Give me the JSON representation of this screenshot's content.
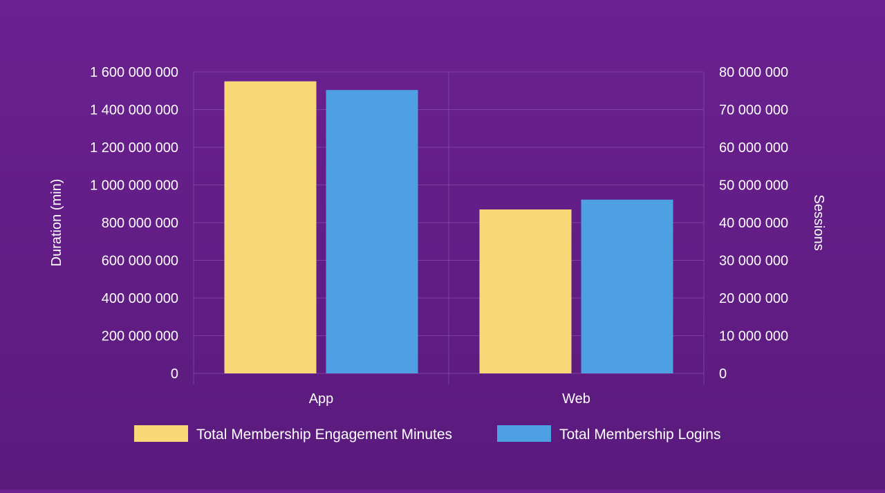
{
  "colors": {
    "background_top": "#6b2190",
    "background_bottom": "#5a1a7c",
    "grid": "#8a4fb0",
    "engagement_bar": "#f9d977",
    "logins_bar": "#4f9fe3",
    "text": "#ffffff"
  },
  "chart_data": {
    "type": "bar",
    "categories": [
      "App",
      "Web"
    ],
    "series": [
      {
        "name": "Total Membership Engagement Minutes",
        "axis": "left",
        "color": "#f9d977",
        "values": [
          1550000000,
          870000000
        ]
      },
      {
        "name": "Total Membership Logins",
        "axis": "right",
        "color": "#4f9fe3",
        "values": [
          75200000,
          46100000
        ]
      }
    ],
    "y_left": {
      "label": "Duration (min)",
      "range": [
        0,
        1600000000
      ],
      "ticks": [
        "0",
        "200 000 000",
        "400 000 000",
        "600 000 000",
        "800 000 000",
        "1 000 000 000",
        "1 200 000 000",
        "1 400 000 000",
        "1 600 000 000"
      ]
    },
    "y_right": {
      "label": "Sessions",
      "range": [
        0,
        80000000
      ],
      "ticks": [
        "0",
        "10 000 000",
        "20 000 000",
        "30 000 000",
        "40 000 000",
        "50 000 000",
        "60 000 000",
        "70 000 000",
        "80 000 000"
      ]
    },
    "grid": true,
    "legend_position": "bottom"
  }
}
